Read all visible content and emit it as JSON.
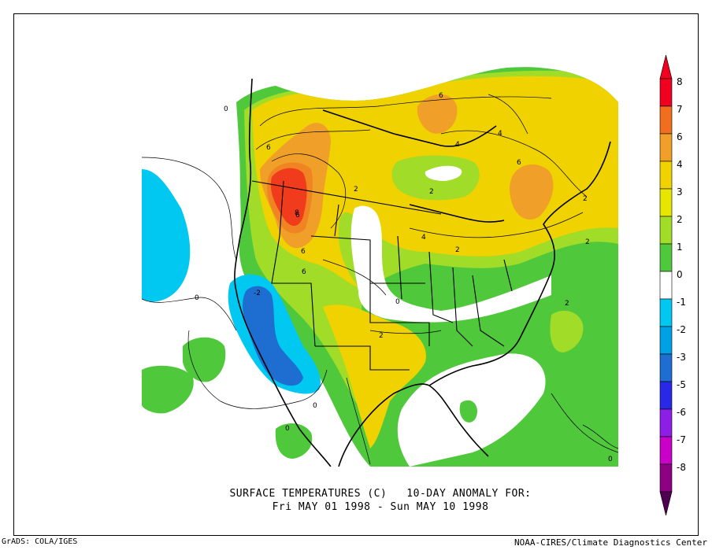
{
  "map": {
    "title_line1": "SURFACE TEMPERATURES (C)   10-DAY ANOMALY FOR:",
    "title_line2": "Fri MAY 01 1998 - Sun MAY 10 1998",
    "footer_left": "GrADS: COLA/IGES",
    "footer_right": "NOAA-CIRES/Climate Diagnostics Center"
  },
  "colorbar": {
    "levels": [
      {
        "label": "8",
        "color": "#f0001e"
      },
      {
        "label": "7",
        "color": "#f06e1e"
      },
      {
        "label": "6",
        "color": "#f0a028"
      },
      {
        "label": "4",
        "color": "#f0d200"
      },
      {
        "label": "3",
        "color": "#e6e600"
      },
      {
        "label": "2",
        "color": "#a0dc28"
      },
      {
        "label": "1",
        "color": "#50c83c"
      },
      {
        "label": "0",
        "color": "#ffffff"
      },
      {
        "label": "-1",
        "color": "#00c8f0"
      },
      {
        "label": "-2",
        "color": "#00a0e6"
      },
      {
        "label": "-3",
        "color": "#1e6ed2"
      },
      {
        "label": "-5",
        "color": "#2828e6"
      },
      {
        "label": "-6",
        "color": "#8c1ee6"
      },
      {
        "label": "-7",
        "color": "#c800c8"
      },
      {
        "label": "-8",
        "color": "#8c0082"
      }
    ],
    "top_cap_color": "#f0001e",
    "bottom_cap_color": "#500050"
  },
  "contour_labels": [
    "0",
    "0",
    "0",
    "0",
    "0",
    "0",
    "6",
    "6",
    "6",
    "4",
    "6",
    "6",
    "2",
    "2",
    "2",
    "2",
    "4",
    "8",
    "6",
    "4",
    "-2",
    "2",
    "2",
    "2"
  ]
}
